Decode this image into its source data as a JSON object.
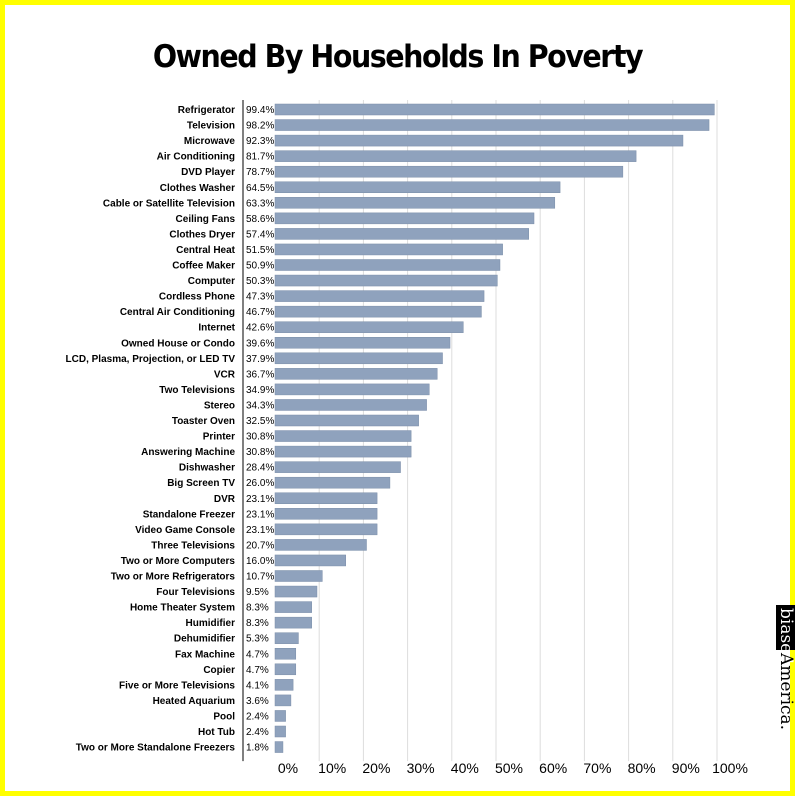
{
  "chart_data": {
    "type": "bar",
    "orientation": "horizontal",
    "title": "Owned By Households In Poverty",
    "categories": [
      "Refrigerator",
      "Television",
      "Microwave",
      "Air Conditioning",
      "DVD Player",
      "Clothes Washer",
      "Cable or Satellite Television",
      "Ceiling Fans",
      "Clothes Dryer",
      "Central Heat",
      "Coffee Maker",
      "Computer",
      "Cordless Phone",
      "Central Air Conditioning",
      "Internet",
      "Owned House or Condo",
      "LCD, Plasma, Projection, or LED TV",
      "VCR",
      "Two Televisions",
      "Stereo",
      "Toaster Oven",
      "Printer",
      "Answering Machine",
      "Dishwasher",
      "Big Screen TV",
      "DVR",
      "Standalone Freezer",
      "Video Game Console",
      "Three Televisions",
      "Two or More Computers",
      "Two or More Refrigerators",
      "Four Televisions",
      "Home Theater System",
      "Humidifier",
      "Dehumidifier",
      "Fax Machine",
      "Copier",
      "Five or More Televisions",
      "Heated Aquarium",
      "Pool",
      "Hot Tub",
      "Two or More Standalone Freezers"
    ],
    "values": [
      99.4,
      98.2,
      92.3,
      81.7,
      78.7,
      64.5,
      63.3,
      58.6,
      57.4,
      51.5,
      50.9,
      50.3,
      47.3,
      46.7,
      42.6,
      39.6,
      37.9,
      36.7,
      34.9,
      34.3,
      32.5,
      30.8,
      30.8,
      28.4,
      26.0,
      23.1,
      23.1,
      23.1,
      20.7,
      16.0,
      10.7,
      9.5,
      8.3,
      8.3,
      5.3,
      4.7,
      4.7,
      4.1,
      3.6,
      2.4,
      2.4,
      1.8
    ],
    "value_labels": [
      "99.4%",
      "98.2%",
      "92.3%",
      "81.7%",
      "78.7%",
      "64.5%",
      "63.3%",
      "58.6%",
      "57.4%",
      "51.5%",
      "50.9%",
      "50.3%",
      "47.3%",
      "46.7%",
      "42.6%",
      "39.6%",
      "37.9%",
      "36.7%",
      "34.9%",
      "34.3%",
      "32.5%",
      "30.8%",
      "30.8%",
      "28.4%",
      "26.0%",
      "23.1%",
      "23.1%",
      "23.1%",
      "20.7%",
      "16.0%",
      "10.7%",
      "9.5%",
      "8.3%",
      "8.3%",
      "5.3%",
      "4.7%",
      "4.7%",
      "4.1%",
      "3.6%",
      "2.4%",
      "2.4%",
      "1.8%"
    ],
    "x_ticks": [
      "0%",
      "10%",
      "20%",
      "30%",
      "40%",
      "50%",
      "60%",
      "70%",
      "80%",
      "90%",
      "100%"
    ],
    "xlim": [
      0,
      100
    ],
    "grid": true,
    "colors": {
      "bar": "#8fa2bd",
      "bar_stroke": "#7a8da8",
      "grid": "#dddddd",
      "border": "#ffff00"
    }
  },
  "watermark": {
    "text_part1": "biased",
    "text_part2": "America."
  }
}
